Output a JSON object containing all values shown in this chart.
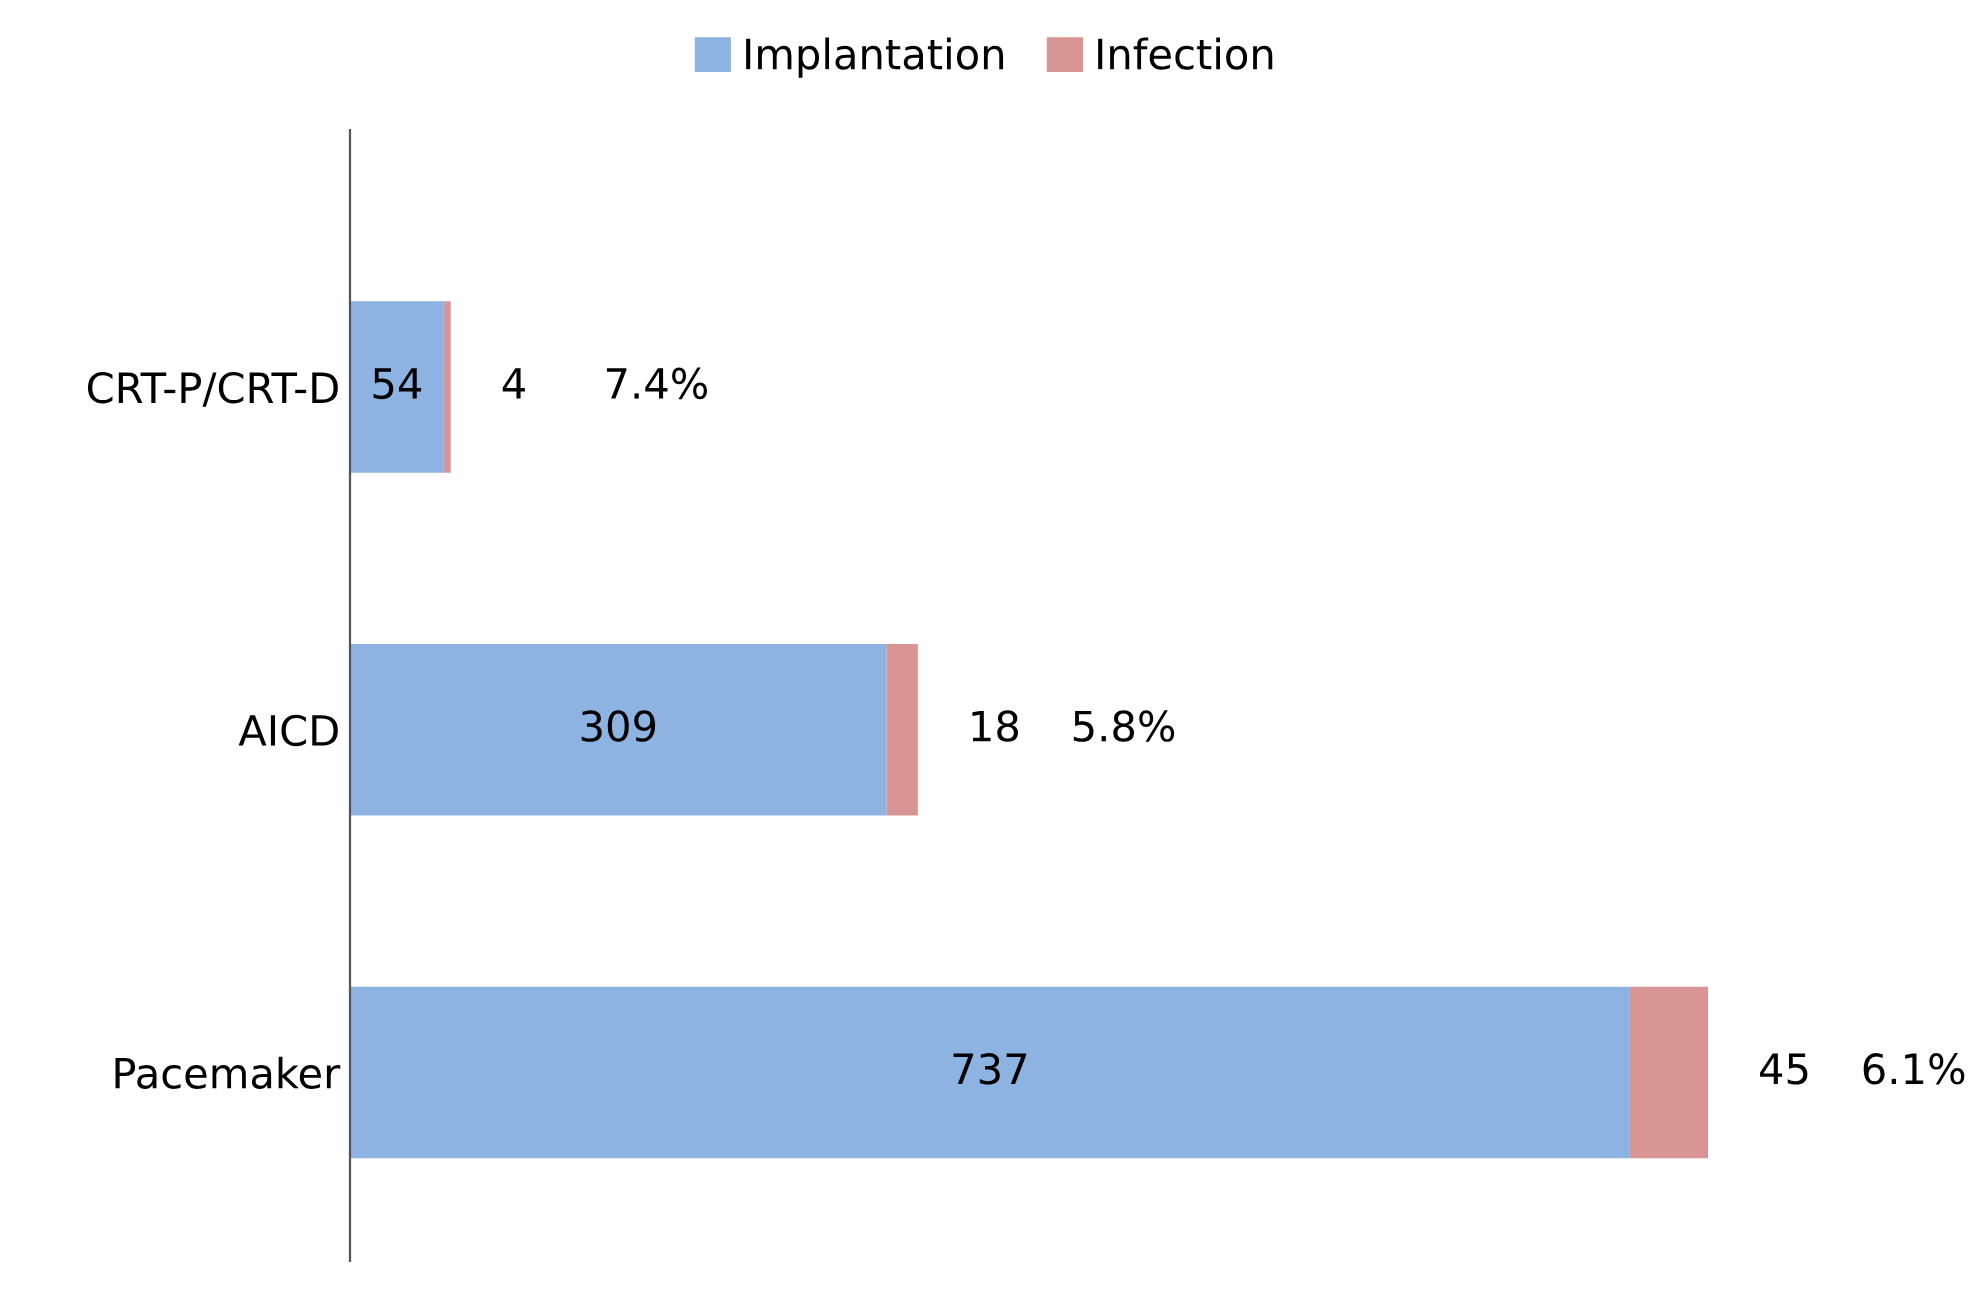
{
  "chart_data": {
    "type": "bar",
    "orientation": "horizontal",
    "stacked": true,
    "categories": [
      "CRT-P/CRT-D",
      "AICD",
      "Pacemaker"
    ],
    "series": [
      {
        "name": "Implantation",
        "color": "#8db3e2",
        "values": [
          54,
          309,
          737
        ]
      },
      {
        "name": "Infection",
        "color": "#d99594",
        "values": [
          4,
          18,
          45
        ]
      }
    ],
    "data_labels": true,
    "annotations": [
      "7.4%",
      "5.8%",
      "6.1%"
    ],
    "legend": "top",
    "grid": false
  }
}
